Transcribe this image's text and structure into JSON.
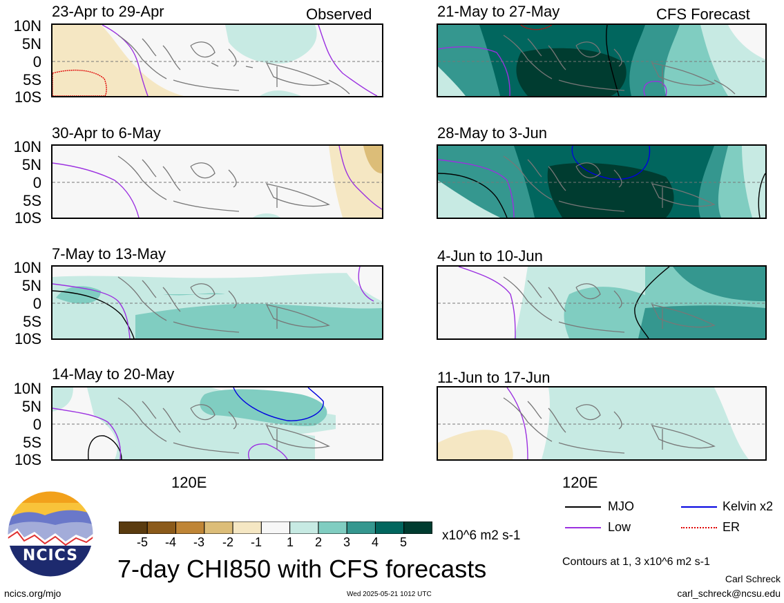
{
  "panels": [
    {
      "title": "23-Apr to 29-Apr",
      "corner": "Observed"
    },
    {
      "title": "21-May to 27-May",
      "corner": "CFS Forecast"
    },
    {
      "title": "30-Apr to 6-May",
      "corner": ""
    },
    {
      "title": "28-May to 3-Jun",
      "corner": ""
    },
    {
      "title": "7-May to 13-May",
      "corner": ""
    },
    {
      "title": "4-Jun to 10-Jun",
      "corner": ""
    },
    {
      "title": "14-May to 20-May",
      "corner": ""
    },
    {
      "title": "11-Jun to 17-Jun",
      "corner": ""
    }
  ],
  "lat_labels": [
    "10N",
    "5N",
    "0",
    "5S",
    "10S"
  ],
  "lon_label": "120E",
  "colorbar": {
    "labels": [
      "-5",
      "-4",
      "-3",
      "-2",
      "-1",
      "1",
      "2",
      "3",
      "4",
      "5"
    ],
    "colors": [
      "#5a3b0f",
      "#8b5a1a",
      "#bf8536",
      "#dcbd78",
      "#f5e7c3",
      "#f7f7f7",
      "#c7eae3",
      "#80cdc1",
      "#35978f",
      "#01665e",
      "#003c30"
    ],
    "units": "x10^6 m2 s-1"
  },
  "legend": {
    "mjo": "MJO",
    "low": "Low",
    "kelvin": "Kelvin x2",
    "er": "ER",
    "colors": {
      "mjo": "#000000",
      "low": "#9b30e0",
      "kelvin": "#0000e0",
      "er": "#e00000"
    }
  },
  "title": "7-day CHI850 with CFS forecasts",
  "contours_note": "Contours at 1, 3 x10^6 m2 s-1",
  "author": "Carl Schreck",
  "email": "carl_schreck@ncsu.edu",
  "website": "ncics.org/mjo",
  "timestamp": "Wed 2025-05-21 1012 UTC",
  "logo_text": "NCICS"
}
